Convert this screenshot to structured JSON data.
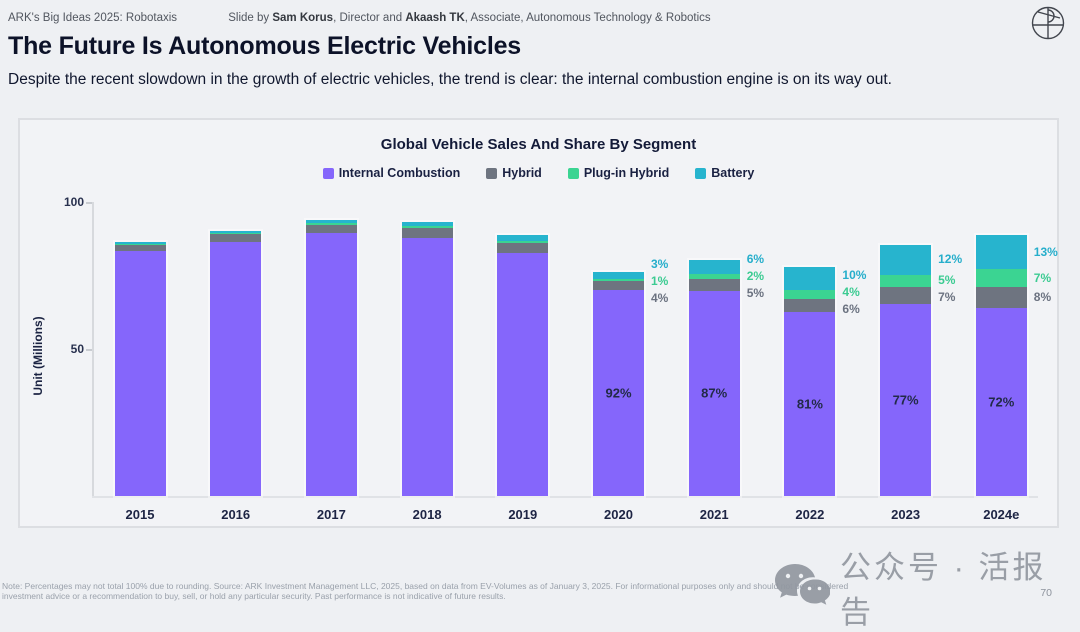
{
  "header": {
    "deck_label": "ARK's Big Ideas 2025: Robotaxis",
    "byline_prefix": "Slide by ",
    "author1": "Sam Korus",
    "byline_mid1": ", Director and ",
    "author2": "Akaash TK",
    "byline_mid2": ", Associate, Autonomous Technology & Robotics",
    "logo_icon": "ark-circle-logo"
  },
  "title": "The Future Is Autonomous Electric Vehicles",
  "subtitle": "Despite the recent slowdown in the growth of electric vehicles, the trend is clear: the internal combustion engine is on its way out.",
  "chart_data": {
    "type": "bar",
    "stacked": true,
    "title": "Global Vehicle Sales And Share By Segment",
    "ylabel": "Unit (Millions)",
    "ylim": [
      0,
      105
    ],
    "yticks": [
      50,
      100
    ],
    "grid": false,
    "legend_position": "top",
    "categories": [
      "2015",
      "2016",
      "2017",
      "2018",
      "2019",
      "2020",
      "2021",
      "2022",
      "2023",
      "2024e"
    ],
    "series": [
      {
        "name": "Internal Combustion",
        "color": "#8566FB",
        "values": [
          83.2,
          86.3,
          89.3,
          87.8,
          82.5,
          70.0,
          69.8,
          62.5,
          65.2,
          64.0
        ]
      },
      {
        "name": "Hybrid",
        "color": "#6E7480",
        "values": [
          2.3,
          2.7,
          2.9,
          3.3,
          3.7,
          3.0,
          4.0,
          4.6,
          5.9,
          7.1
        ]
      },
      {
        "name": "Plug-in Hybrid",
        "color": "#3BD492",
        "values": [
          0.3,
          0.4,
          0.5,
          0.7,
          0.7,
          0.8,
          1.6,
          3.1,
          4.2,
          6.2
        ]
      },
      {
        "name": "Battery",
        "color": "#27B4CE",
        "values": [
          0.6,
          0.9,
          1.2,
          1.5,
          1.9,
          2.3,
          4.8,
          7.7,
          10.2,
          11.5
        ]
      }
    ],
    "share_labels": {
      "internal_combustion": [
        "",
        "",
        "",
        "",
        "",
        "92%",
        "87%",
        "81%",
        "77%",
        "72%"
      ],
      "hybrid": [
        "",
        "",
        "",
        "",
        "",
        "4%",
        "5%",
        "6%",
        "7%",
        "8%"
      ],
      "plugin_hybrid": [
        "",
        "",
        "",
        "",
        "",
        "1%",
        "2%",
        "4%",
        "5%",
        "7%"
      ],
      "battery": [
        "",
        "",
        "",
        "",
        "",
        "3%",
        "6%",
        "10%",
        "12%",
        "13%"
      ]
    },
    "label_colors": {
      "internal_combustion": "#222A47",
      "hybrid": "#6B7280",
      "plugin_hybrid": "#3CCB92",
      "battery": "#26AECB"
    }
  },
  "footer": {
    "note_line1": "Note: Percentages may not total 100% due to rounding. Source: ARK Investment Management LLC, 2025, based on data from EV-Volumes as of January 3, 2025. For informational purposes only and should not be considered",
    "note_line2": "investment advice or a recommendation to buy, sell, or hold any particular security. Past performance is not indicative of future results.",
    "page_number": "70"
  },
  "watermark": {
    "icon": "wechat-icon",
    "text": "公众号 · 活报告"
  }
}
